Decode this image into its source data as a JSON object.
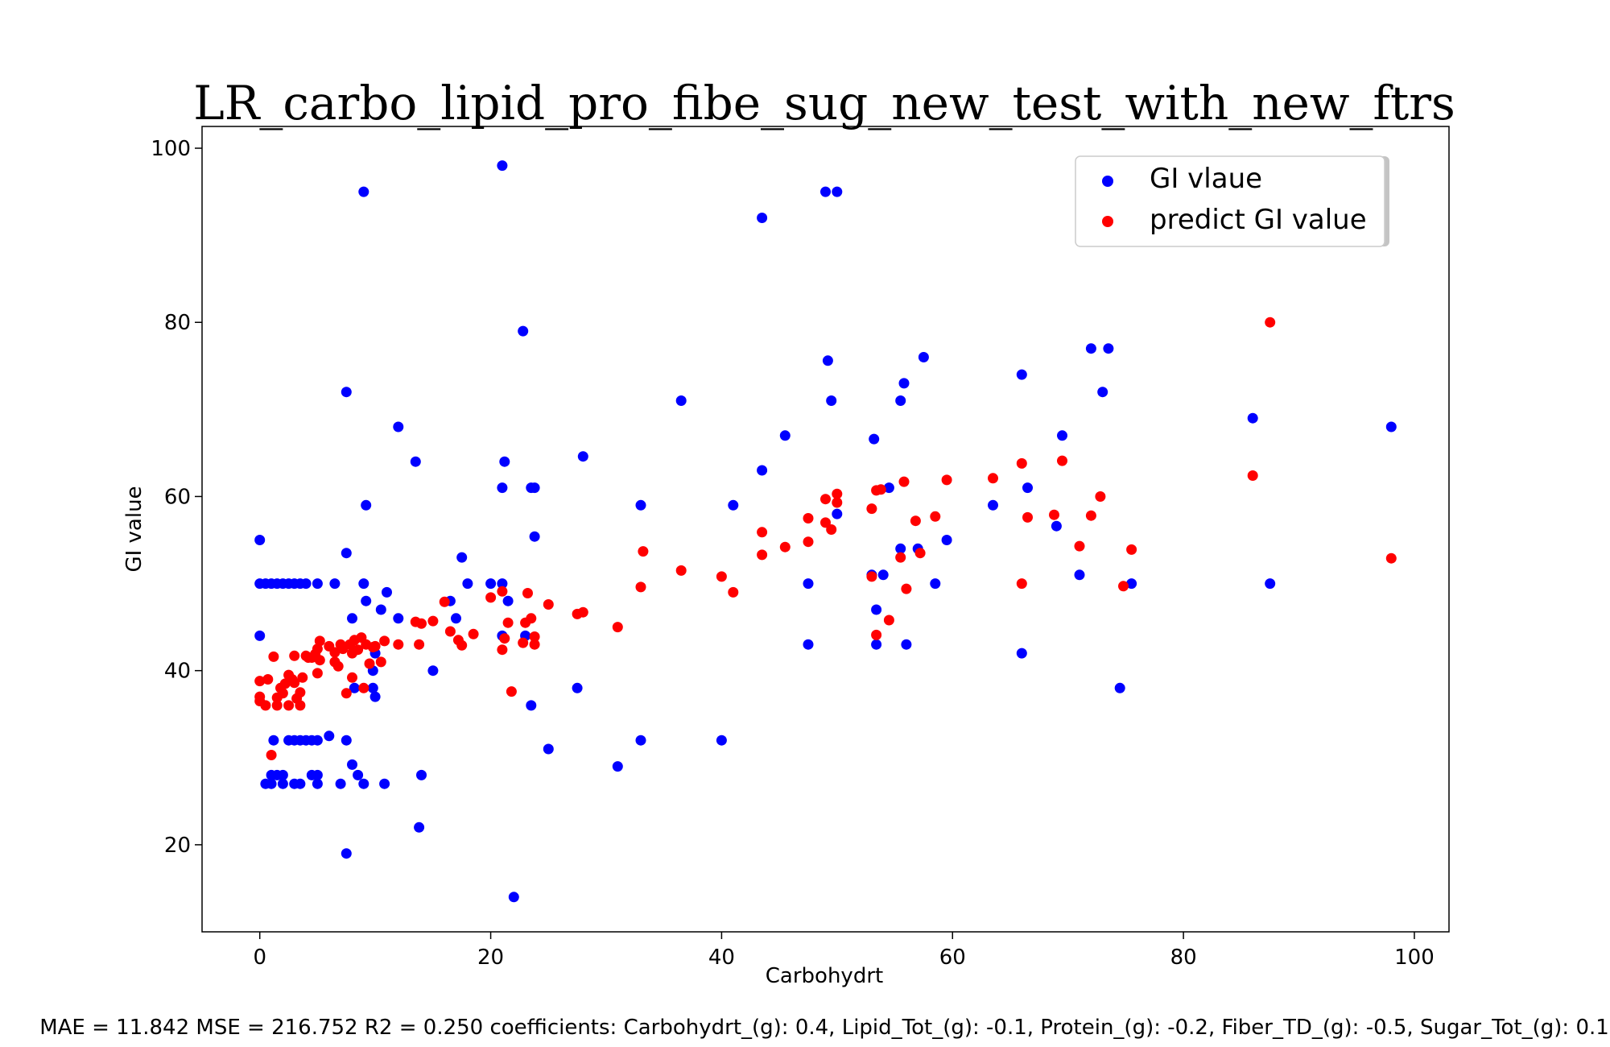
{
  "chart_data": {
    "type": "scatter",
    "title": "LR_carbo_lipid_pro_fibe_sug_new_test_with_new_ftrs",
    "xlabel": "Carbohydrt",
    "ylabel": "GI value",
    "xlim": [
      -5,
      103
    ],
    "ylim": [
      10,
      102.5
    ],
    "xticks": [
      0,
      20,
      40,
      60,
      80,
      100
    ],
    "yticks": [
      20,
      40,
      60,
      80,
      100
    ],
    "legend_position": "top-right",
    "footer": "MAE = 11.842 MSE = 216.752 R2 = 0.250 coefficients: Carbohydrt_(g): 0.4, Lipid_Tot_(g): -0.1, Protein_(g): -0.2, Fiber_TD_(g): -0.5, Sugar_Tot_(g): 0.1",
    "series": [
      {
        "name": "GI vlaue",
        "color": "#0000ff",
        "points": [
          [
            0,
            55
          ],
          [
            0,
            44
          ],
          [
            0,
            50
          ],
          [
            0.5,
            50
          ],
          [
            1,
            50
          ],
          [
            1.5,
            50
          ],
          [
            2,
            50
          ],
          [
            2.5,
            50
          ],
          [
            3,
            50
          ],
          [
            3.5,
            50
          ],
          [
            4,
            50
          ],
          [
            5,
            50
          ],
          [
            6.5,
            50
          ],
          [
            9,
            50
          ],
          [
            0.5,
            27
          ],
          [
            1,
            27
          ],
          [
            2,
            27
          ],
          [
            3,
            27
          ],
          [
            3.5,
            27
          ],
          [
            5,
            27
          ],
          [
            7,
            27
          ],
          [
            9,
            27
          ],
          [
            10.8,
            27
          ],
          [
            1,
            28
          ],
          [
            1.5,
            28
          ],
          [
            2,
            28
          ],
          [
            4.5,
            28
          ],
          [
            5,
            28
          ],
          [
            8.5,
            28
          ],
          [
            14,
            28
          ],
          [
            1.2,
            32
          ],
          [
            2.5,
            32
          ],
          [
            3,
            32
          ],
          [
            3.5,
            32
          ],
          [
            4,
            32
          ],
          [
            4.5,
            32
          ],
          [
            5,
            32
          ],
          [
            7.5,
            32
          ],
          [
            6,
            32.5
          ],
          [
            8,
            29.2
          ],
          [
            7.5,
            19
          ],
          [
            7.5,
            72
          ],
          [
            7.5,
            53.5
          ],
          [
            8,
            46
          ],
          [
            8.2,
            38
          ],
          [
            9,
            95
          ],
          [
            9.2,
            59
          ],
          [
            9.2,
            48
          ],
          [
            9.8,
            40
          ],
          [
            9.8,
            38
          ],
          [
            10,
            37
          ],
          [
            10,
            42
          ],
          [
            10.5,
            47
          ],
          [
            11,
            49
          ],
          [
            12,
            68
          ],
          [
            12,
            46
          ],
          [
            13.5,
            64
          ],
          [
            13.8,
            22
          ],
          [
            15,
            40
          ],
          [
            16.5,
            48
          ],
          [
            17,
            46
          ],
          [
            17.5,
            53
          ],
          [
            18,
            50
          ],
          [
            20,
            50
          ],
          [
            21,
            50
          ],
          [
            21,
            61
          ],
          [
            21,
            44
          ],
          [
            21,
            98
          ],
          [
            21.2,
            64
          ],
          [
            21.5,
            48
          ],
          [
            22,
            14
          ],
          [
            22.8,
            79
          ],
          [
            23,
            44
          ],
          [
            23.5,
            61
          ],
          [
            23.5,
            36
          ],
          [
            23.8,
            61
          ],
          [
            23.8,
            55.4
          ],
          [
            25,
            31
          ],
          [
            27.5,
            38
          ],
          [
            28,
            64.6
          ],
          [
            31,
            29
          ],
          [
            33,
            59
          ],
          [
            33,
            32
          ],
          [
            36.5,
            71
          ],
          [
            40,
            32
          ],
          [
            41,
            59
          ],
          [
            43.5,
            92
          ],
          [
            43.5,
            63
          ],
          [
            45.5,
            67
          ],
          [
            47.5,
            50
          ],
          [
            47.5,
            43
          ],
          [
            49,
            95
          ],
          [
            49.2,
            75.6
          ],
          [
            49.5,
            71
          ],
          [
            50,
            95
          ],
          [
            50,
            58
          ],
          [
            53,
            51
          ],
          [
            53.2,
            66.6
          ],
          [
            53.4,
            47
          ],
          [
            53.4,
            43
          ],
          [
            54,
            51
          ],
          [
            54.5,
            61
          ],
          [
            55.5,
            71
          ],
          [
            55.5,
            54
          ],
          [
            55.8,
            73
          ],
          [
            56,
            43
          ],
          [
            57,
            54
          ],
          [
            57.5,
            76
          ],
          [
            58.5,
            50
          ],
          [
            59.5,
            55
          ],
          [
            63.5,
            59
          ],
          [
            66,
            74
          ],
          [
            66,
            42
          ],
          [
            66.5,
            61
          ],
          [
            69,
            56.6
          ],
          [
            69.5,
            67
          ],
          [
            71,
            51
          ],
          [
            72,
            77
          ],
          [
            73,
            72
          ],
          [
            73.5,
            77
          ],
          [
            74.5,
            38
          ],
          [
            75.5,
            50
          ],
          [
            86,
            69
          ],
          [
            87.5,
            50
          ],
          [
            98,
            68
          ]
        ]
      },
      {
        "name": "predict GI value",
        "color": "#ff0000",
        "points": [
          [
            0,
            36.5
          ],
          [
            0,
            38.8
          ],
          [
            0,
            37
          ],
          [
            0.5,
            36
          ],
          [
            0.7,
            39
          ],
          [
            1,
            30.3
          ],
          [
            1.2,
            41.6
          ],
          [
            1.5,
            36.9
          ],
          [
            1.5,
            36
          ],
          [
            1.8,
            38
          ],
          [
            2,
            37.4
          ],
          [
            2.2,
            38.5
          ],
          [
            2.5,
            39.5
          ],
          [
            2.5,
            36
          ],
          [
            2.8,
            39
          ],
          [
            3,
            38.6
          ],
          [
            3,
            41.7
          ],
          [
            3.2,
            36.8
          ],
          [
            3.5,
            36
          ],
          [
            3.5,
            37.5
          ],
          [
            3.7,
            39.2
          ],
          [
            4,
            41.7
          ],
          [
            4.2,
            41.5
          ],
          [
            4.5,
            41.5
          ],
          [
            4.8,
            41.9
          ],
          [
            5,
            39.7
          ],
          [
            5,
            42.5
          ],
          [
            5.2,
            41.2
          ],
          [
            5.2,
            43.4
          ],
          [
            6,
            42.8
          ],
          [
            6.5,
            42.1
          ],
          [
            6.5,
            41
          ],
          [
            6.8,
            40.5
          ],
          [
            7,
            43
          ],
          [
            7.2,
            42.5
          ],
          [
            7.5,
            37.4
          ],
          [
            7.8,
            43
          ],
          [
            8,
            42
          ],
          [
            8,
            39.2
          ],
          [
            8.2,
            43.5
          ],
          [
            8.5,
            42.4
          ],
          [
            8.8,
            43.8
          ],
          [
            9,
            38
          ],
          [
            9.2,
            43
          ],
          [
            9.5,
            40.8
          ],
          [
            9.8,
            42.7
          ],
          [
            10,
            42.8
          ],
          [
            10.5,
            41
          ],
          [
            10.8,
            43.4
          ],
          [
            12,
            43
          ],
          [
            13.5,
            45.6
          ],
          [
            13.8,
            43
          ],
          [
            14,
            45.4
          ],
          [
            15,
            45.7
          ],
          [
            16,
            47.9
          ],
          [
            16.5,
            44.5
          ],
          [
            17.2,
            43.5
          ],
          [
            17.5,
            42.9
          ],
          [
            18.5,
            44.2
          ],
          [
            20,
            48.4
          ],
          [
            21,
            42.4
          ],
          [
            21,
            49.1
          ],
          [
            21.2,
            43.7
          ],
          [
            21.5,
            45.5
          ],
          [
            21.8,
            37.6
          ],
          [
            22.8,
            43.2
          ],
          [
            23,
            45.5
          ],
          [
            23.2,
            48.9
          ],
          [
            23.5,
            46
          ],
          [
            23.8,
            43.9
          ],
          [
            23.8,
            43
          ],
          [
            25,
            47.6
          ],
          [
            27.5,
            46.5
          ],
          [
            28,
            46.7
          ],
          [
            31,
            45
          ],
          [
            33,
            49.6
          ],
          [
            33.2,
            53.7
          ],
          [
            36.5,
            51.5
          ],
          [
            40,
            50.8
          ],
          [
            41,
            49
          ],
          [
            43.5,
            55.9
          ],
          [
            43.5,
            53.3
          ],
          [
            45.5,
            54.2
          ],
          [
            47.5,
            57.5
          ],
          [
            47.5,
            54.8
          ],
          [
            49,
            59.7
          ],
          [
            49,
            57
          ],
          [
            49.5,
            56.2
          ],
          [
            50,
            60.3
          ],
          [
            50,
            59.3
          ],
          [
            53,
            58.6
          ],
          [
            53,
            50.8
          ],
          [
            53.4,
            60.7
          ],
          [
            53.4,
            44.1
          ],
          [
            53.8,
            60.8
          ],
          [
            54.5,
            45.8
          ],
          [
            55.5,
            53
          ],
          [
            55.8,
            61.7
          ],
          [
            56,
            49.4
          ],
          [
            56.8,
            57.2
          ],
          [
            57.2,
            53.5
          ],
          [
            58.5,
            57.7
          ],
          [
            59.5,
            61.9
          ],
          [
            63.5,
            62.1
          ],
          [
            66,
            63.8
          ],
          [
            66,
            50
          ],
          [
            66.5,
            57.6
          ],
          [
            68.8,
            57.9
          ],
          [
            69.5,
            64.1
          ],
          [
            71,
            54.3
          ],
          [
            72,
            57.8
          ],
          [
            72.8,
            60
          ],
          [
            74.8,
            49.7
          ],
          [
            75.5,
            53.9
          ],
          [
            86,
            62.4
          ],
          [
            87.5,
            80
          ],
          [
            98,
            52.9
          ]
        ]
      }
    ]
  }
}
